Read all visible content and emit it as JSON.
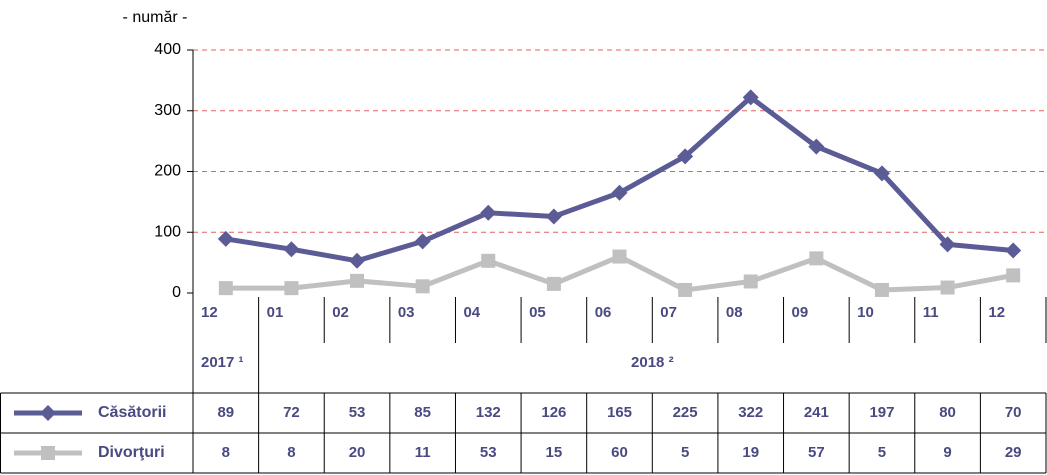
{
  "chart_data": {
    "type": "line",
    "y_label": "- număr -",
    "categories": [
      "12",
      "01",
      "02",
      "03",
      "04",
      "05",
      "06",
      "07",
      "08",
      "09",
      "10",
      "11",
      "12"
    ],
    "periods": [
      "2017 ¹",
      "2018 ²"
    ],
    "series": [
      {
        "name": "Căsătorii",
        "color": "#5b5b96",
        "marker": "diamond",
        "values": [
          89,
          72,
          53,
          85,
          132,
          126,
          165,
          225,
          322,
          241,
          197,
          80,
          70
        ]
      },
      {
        "name": "Divorţuri",
        "color": "#c0c0c0",
        "marker": "square",
        "values": [
          8,
          8,
          20,
          11,
          53,
          15,
          60,
          5,
          19,
          57,
          5,
          9,
          29
        ]
      }
    ],
    "ylim": [
      0,
      400
    ],
    "yticks": [
      0,
      100,
      200,
      300,
      400
    ],
    "grid": true,
    "grid_color": "#e06060"
  }
}
